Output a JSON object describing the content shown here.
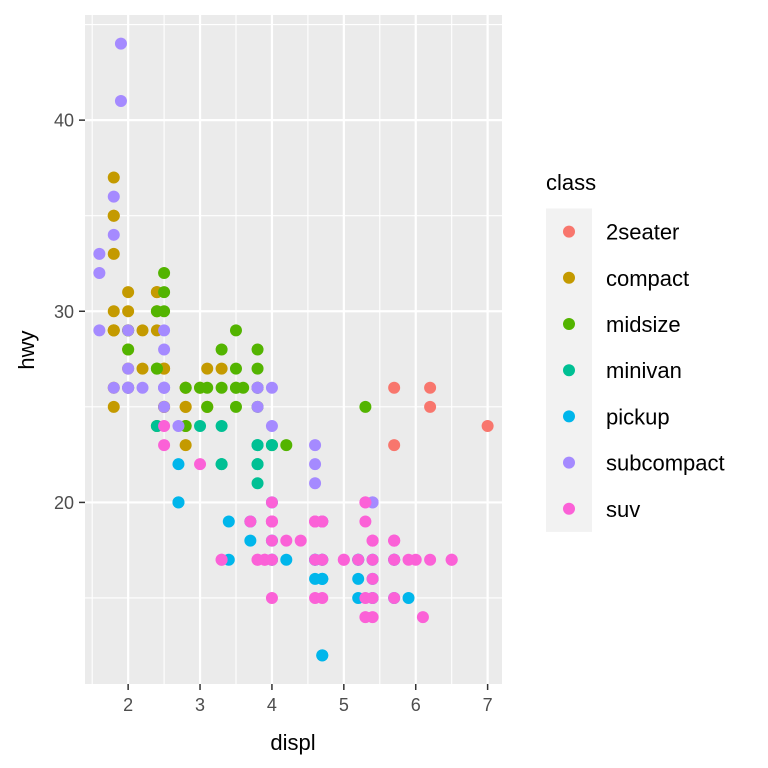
{
  "chart_data": {
    "type": "scatter",
    "xlabel": "displ",
    "ylabel": "hwy",
    "xlim": [
      1.4,
      7.2
    ],
    "ylim": [
      10.5,
      45.5
    ],
    "x_ticks": [
      2,
      3,
      4,
      5,
      6,
      7
    ],
    "y_ticks": [
      20,
      30,
      40
    ],
    "grid": true,
    "background": "#EBEBEB",
    "legend": {
      "title": "class",
      "placement": "right",
      "entries": [
        "2seater",
        "compact",
        "midsize",
        "minivan",
        "pickup",
        "subcompact",
        "suv"
      ]
    },
    "colors": {
      "2seater": "#F8766D",
      "compact": "#C49A00",
      "midsize": "#53B400",
      "minivan": "#00C094",
      "pickup": "#00B6EB",
      "subcompact": "#A58AFF",
      "suv": "#FB61D7"
    },
    "series": [
      {
        "name": "2seater",
        "points": [
          [
            5.7,
            26
          ],
          [
            5.7,
            23
          ],
          [
            6.2,
            26
          ],
          [
            6.2,
            25
          ],
          [
            7.0,
            24
          ]
        ]
      },
      {
        "name": "compact",
        "points": [
          [
            1.8,
            29
          ],
          [
            1.8,
            29
          ],
          [
            2.0,
            31
          ],
          [
            2.0,
            30
          ],
          [
            2.8,
            26
          ],
          [
            2.8,
            26
          ],
          [
            3.1,
            27
          ],
          [
            1.8,
            26
          ],
          [
            1.8,
            25
          ],
          [
            2.0,
            28
          ],
          [
            2.0,
            27
          ],
          [
            2.8,
            25
          ],
          [
            2.8,
            25
          ],
          [
            3.1,
            25
          ],
          [
            3.1,
            25
          ],
          [
            2.2,
            29
          ],
          [
            2.2,
            27
          ],
          [
            2.4,
            31
          ],
          [
            2.4,
            31
          ],
          [
            3.0,
            26
          ],
          [
            3.3,
            27
          ],
          [
            1.8,
            33
          ],
          [
            1.8,
            35
          ],
          [
            1.8,
            37
          ],
          [
            1.8,
            35
          ],
          [
            1.8,
            29
          ],
          [
            1.8,
            30
          ],
          [
            2.0,
            29
          ],
          [
            2.0,
            26
          ],
          [
            2.0,
            29
          ],
          [
            2.5,
            27
          ],
          [
            2.5,
            27
          ],
          [
            2.5,
            25
          ],
          [
            2.5,
            25
          ],
          [
            2.5,
            25
          ],
          [
            2.8,
            24
          ],
          [
            2.8,
            23
          ],
          [
            2.4,
            29
          ],
          [
            2.4,
            30
          ]
        ]
      },
      {
        "name": "midsize",
        "points": [
          [
            2.4,
            27
          ],
          [
            2.4,
            30
          ],
          [
            3.1,
            26
          ],
          [
            3.5,
            29
          ],
          [
            3.6,
            26
          ],
          [
            2.4,
            27
          ],
          [
            3.0,
            26
          ],
          [
            3.3,
            26
          ],
          [
            3.3,
            28
          ],
          [
            3.8,
            27
          ],
          [
            3.8,
            26
          ],
          [
            2.0,
            29
          ],
          [
            2.0,
            28
          ],
          [
            2.5,
            32
          ],
          [
            2.5,
            31
          ],
          [
            2.5,
            30
          ],
          [
            3.5,
            27
          ],
          [
            3.5,
            26
          ],
          [
            3.5,
            26
          ],
          [
            3.8,
            28
          ],
          [
            3.8,
            26
          ],
          [
            3.8,
            25
          ],
          [
            4.2,
            23
          ],
          [
            5.3,
            25
          ],
          [
            2.0,
            26
          ],
          [
            2.8,
            26
          ],
          [
            3.1,
            25
          ],
          [
            4.0,
            23
          ],
          [
            2.4,
            24
          ],
          [
            2.8,
            24
          ],
          [
            3.5,
            25
          ]
        ]
      },
      {
        "name": "minivan",
        "points": [
          [
            2.4,
            24
          ],
          [
            3.0,
            24
          ],
          [
            3.3,
            22
          ],
          [
            3.3,
            24
          ],
          [
            3.8,
            22
          ],
          [
            3.8,
            21
          ],
          [
            3.8,
            23
          ],
          [
            3.8,
            22
          ],
          [
            4.0,
            23
          ],
          [
            3.3,
            22
          ],
          [
            3.8,
            23
          ]
        ]
      },
      {
        "name": "pickup",
        "points": [
          [
            2.7,
            20
          ],
          [
            2.7,
            20
          ],
          [
            2.7,
            22
          ],
          [
            3.4,
            19
          ],
          [
            3.4,
            17
          ],
          [
            3.7,
            18
          ],
          [
            4.0,
            20
          ],
          [
            4.0,
            18
          ],
          [
            4.7,
            17
          ],
          [
            4.7,
            16
          ],
          [
            4.7,
            12
          ],
          [
            5.2,
            16
          ],
          [
            5.2,
            17
          ],
          [
            5.7,
            17
          ],
          [
            5.9,
            15
          ],
          [
            4.7,
            16
          ],
          [
            4.7,
            17
          ],
          [
            4.7,
            12
          ],
          [
            5.2,
            15
          ],
          [
            5.7,
            15
          ],
          [
            4.7,
            16
          ],
          [
            4.6,
            17
          ],
          [
            4.6,
            16
          ],
          [
            5.4,
            16
          ],
          [
            5.4,
            17
          ],
          [
            5.4,
            15
          ],
          [
            4.0,
            17
          ],
          [
            4.0,
            17
          ],
          [
            4.2,
            17
          ],
          [
            4.6,
            17
          ],
          [
            3.7,
            19
          ],
          [
            4.7,
            19
          ],
          [
            5.2,
            17
          ],
          [
            5.7,
            17
          ]
        ]
      },
      {
        "name": "subcompact",
        "points": [
          [
            1.6,
            33
          ],
          [
            1.6,
            32
          ],
          [
            1.6,
            29
          ],
          [
            1.9,
            44
          ],
          [
            1.9,
            41
          ],
          [
            1.8,
            36
          ],
          [
            1.8,
            34
          ],
          [
            2.0,
            29
          ],
          [
            2.0,
            26
          ],
          [
            2.5,
            29
          ],
          [
            2.5,
            28
          ],
          [
            2.5,
            26
          ],
          [
            2.2,
            26
          ],
          [
            2.5,
            26
          ],
          [
            2.5,
            26
          ],
          [
            2.7,
            24
          ],
          [
            3.8,
            25
          ],
          [
            3.8,
            26
          ],
          [
            4.0,
            26
          ],
          [
            4.0,
            24
          ],
          [
            4.6,
            23
          ],
          [
            4.6,
            22
          ],
          [
            4.6,
            21
          ],
          [
            5.4,
            20
          ],
          [
            2.0,
            27
          ],
          [
            1.8,
            26
          ],
          [
            2.0,
            26
          ],
          [
            2.5,
            26
          ],
          [
            2.5,
            25
          ],
          [
            2.0,
            26
          ],
          [
            3.8,
            26
          ],
          [
            4.7,
            19
          ],
          [
            5.4,
            20
          ]
        ]
      },
      {
        "name": "suv",
        "points": [
          [
            5.3,
            20
          ],
          [
            5.3,
            15
          ],
          [
            5.3,
            20
          ],
          [
            5.7,
            17
          ],
          [
            6.0,
            17
          ],
          [
            5.7,
            15
          ],
          [
            5.7,
            18
          ],
          [
            6.2,
            17
          ],
          [
            6.5,
            17
          ],
          [
            3.9,
            17
          ],
          [
            4.7,
            17
          ],
          [
            4.7,
            19
          ],
          [
            4.7,
            17
          ],
          [
            5.2,
            17
          ],
          [
            5.7,
            18
          ],
          [
            5.9,
            17
          ],
          [
            4.6,
            15
          ],
          [
            5.4,
            15
          ],
          [
            5.4,
            16
          ],
          [
            4.0,
            18
          ],
          [
            4.0,
            17
          ],
          [
            4.0,
            19
          ],
          [
            4.6,
            19
          ],
          [
            5.0,
            17
          ],
          [
            4.2,
            18
          ],
          [
            4.4,
            18
          ],
          [
            4.6,
            17
          ],
          [
            5.4,
            18
          ],
          [
            5.4,
            14
          ],
          [
            4.0,
            15
          ],
          [
            4.0,
            19
          ],
          [
            4.6,
            19
          ],
          [
            5.3,
            19
          ],
          [
            5.3,
            14
          ],
          [
            6.1,
            14
          ],
          [
            2.5,
            23
          ],
          [
            2.5,
            24
          ],
          [
            3.0,
            22
          ],
          [
            3.3,
            17
          ],
          [
            3.7,
            19
          ],
          [
            3.9,
            17
          ],
          [
            4.7,
            15
          ],
          [
            4.7,
            19
          ],
          [
            5.7,
            17
          ],
          [
            5.7,
            18
          ],
          [
            6.5,
            17
          ],
          [
            4.0,
            19
          ],
          [
            4.0,
            20
          ],
          [
            3.3,
            17
          ],
          [
            3.8,
            17
          ],
          [
            3.8,
            17
          ],
          [
            4.0,
            17
          ],
          [
            4.0,
            19
          ],
          [
            4.6,
            19
          ],
          [
            5.0,
            17
          ],
          [
            5.4,
            18
          ],
          [
            5.4,
            17
          ]
        ]
      }
    ]
  }
}
